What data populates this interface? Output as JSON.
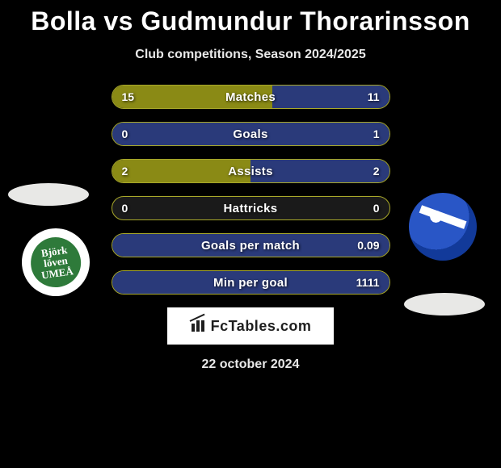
{
  "header": {
    "title": "Bolla vs Gudmundur Thorarinsson",
    "subtitle": "Club competitions, Season 2024/2025"
  },
  "colors": {
    "left": "#8a8a15",
    "right": "#2a3a7a",
    "bar_border": "#a8a82a",
    "row_bg": "#1a1a1a"
  },
  "branding": {
    "label": "FcTables.com"
  },
  "date": "22 october 2024",
  "left_logo_text": "Björk\nlöven\nUMEÅ",
  "stats": [
    {
      "label": "Matches",
      "left_value": "15",
      "right_value": "11",
      "left_fill_pct": 58,
      "right_fill_pct": 42
    },
    {
      "label": "Goals",
      "left_value": "0",
      "right_value": "1",
      "left_fill_pct": 0,
      "right_fill_pct": 100
    },
    {
      "label": "Assists",
      "left_value": "2",
      "right_value": "2",
      "left_fill_pct": 50,
      "right_fill_pct": 50
    },
    {
      "label": "Hattricks",
      "left_value": "0",
      "right_value": "0",
      "left_fill_pct": 0,
      "right_fill_pct": 0
    },
    {
      "label": "Goals per match",
      "left_value": "",
      "right_value": "0.09",
      "left_fill_pct": 0,
      "right_fill_pct": 100
    },
    {
      "label": "Min per goal",
      "left_value": "",
      "right_value": "1111",
      "left_fill_pct": 0,
      "right_fill_pct": 100
    }
  ]
}
